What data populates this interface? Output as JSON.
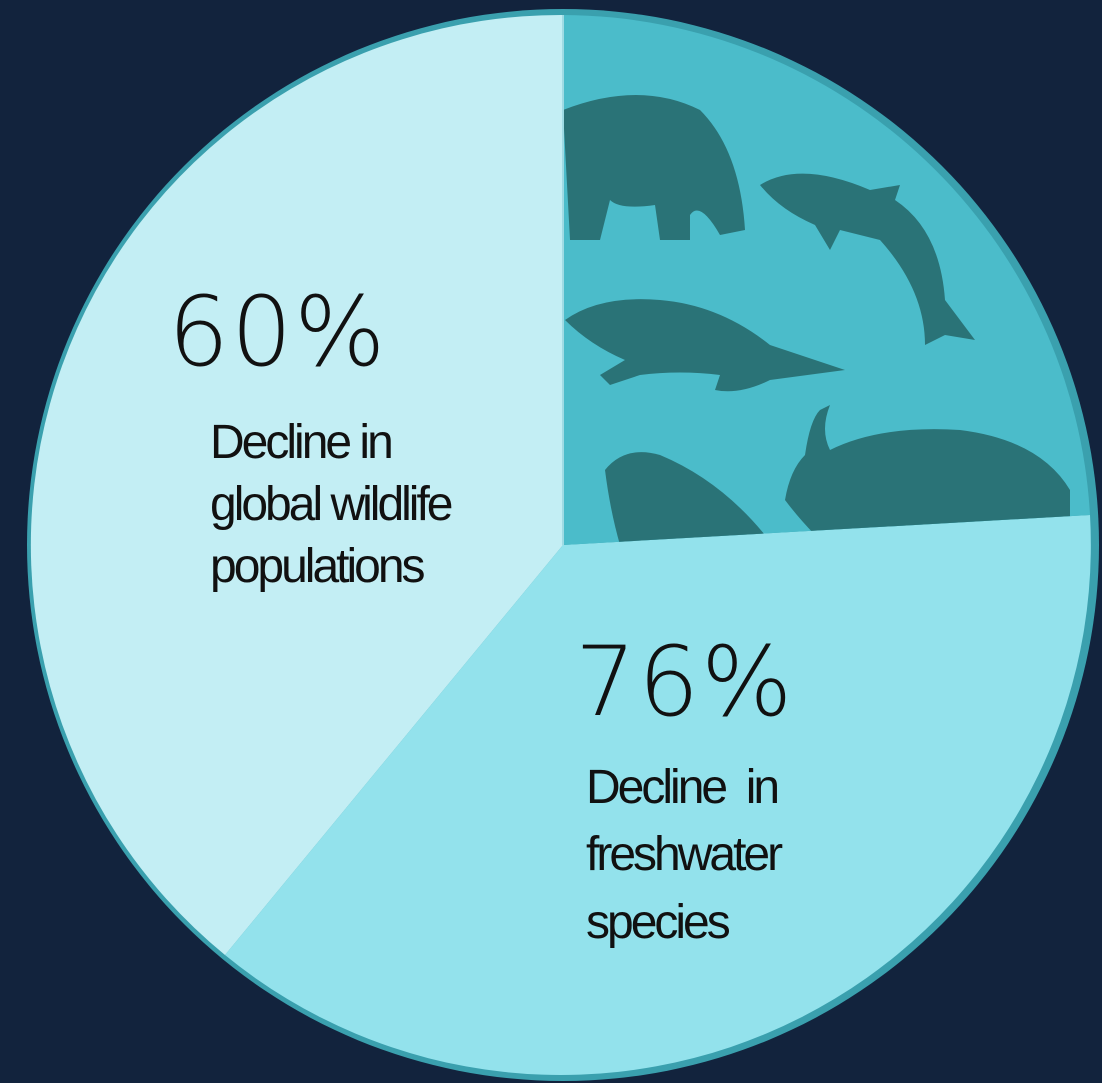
{
  "segments": [
    {
      "figure": "60%",
      "caption": [
        "Decline in",
        "global wildlife",
        "populations"
      ]
    },
    {
      "figure": "76%",
      "caption": [
        "Decline  in",
        "freshwater",
        "species"
      ]
    }
  ]
}
